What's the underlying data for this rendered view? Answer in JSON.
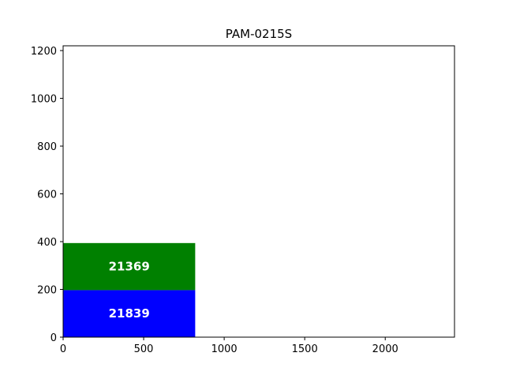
{
  "chart_data": {
    "type": "bar",
    "title": "PAM-0215S",
    "xlabel": "",
    "ylabel": "",
    "xlim": [
      0,
      2430
    ],
    "ylim": [
      0,
      1220
    ],
    "x_ticks": [
      0,
      500,
      1000,
      1500,
      2000
    ],
    "y_ticks": [
      0,
      200,
      400,
      600,
      800,
      1000,
      1200
    ],
    "grid": false,
    "legend": "none",
    "rects": [
      {
        "x": 0,
        "y": 0,
        "width": 820,
        "height": 197,
        "label": "21839",
        "color": "#0000ff"
      },
      {
        "x": 0,
        "y": 197,
        "width": 820,
        "height": 197,
        "label": "21369",
        "color": "#008000"
      }
    ]
  }
}
